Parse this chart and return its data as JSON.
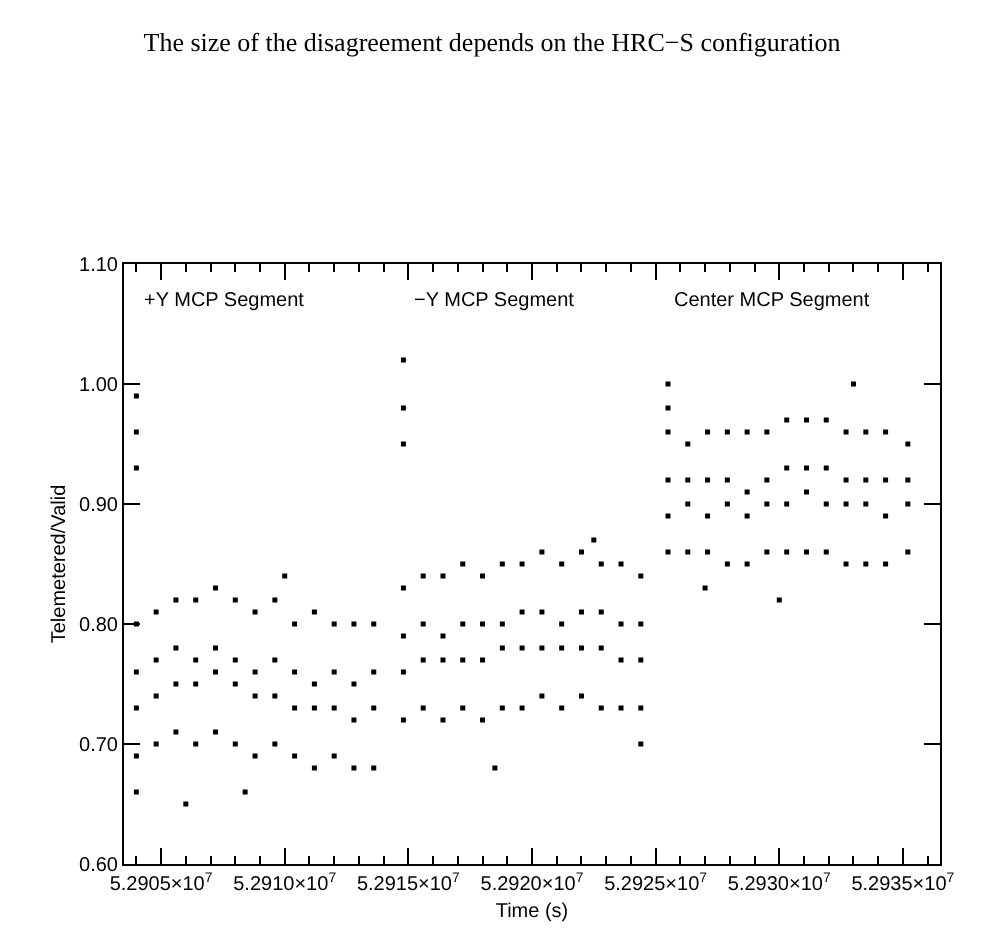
{
  "chart_data": {
    "type": "scatter",
    "title": "The size of the disagreement depends on the HRC−S configuration",
    "xlabel": "Time (s)",
    "ylabel": "Telemetered/Valid",
    "xlim": [
      52903500,
      52936500
    ],
    "ylim": [
      0.6,
      1.1
    ],
    "xticks": [
      {
        "value": 52904000,
        "label": null
      },
      {
        "value": 52905000,
        "label": "5.2905×10$^{7}$"
      },
      {
        "value": 52906000,
        "label": null
      },
      {
        "value": 52907000,
        "label": null
      },
      {
        "value": 52908000,
        "label": null
      },
      {
        "value": 52909000,
        "label": null
      },
      {
        "value": 52910000,
        "label": "5.2910×10$^{7}$"
      },
      {
        "value": 52911000,
        "label": null
      },
      {
        "value": 52912000,
        "label": null
      },
      {
        "value": 52913000,
        "label": null
      },
      {
        "value": 52914000,
        "label": null
      },
      {
        "value": 52915000,
        "label": "5.2915×10$^{7}$"
      },
      {
        "value": 52916000,
        "label": null
      },
      {
        "value": 52917000,
        "label": null
      },
      {
        "value": 52918000,
        "label": null
      },
      {
        "value": 52919000,
        "label": null
      },
      {
        "value": 52920000,
        "label": "5.2920×10$^{7}$"
      },
      {
        "value": 52921000,
        "label": null
      },
      {
        "value": 52922000,
        "label": null
      },
      {
        "value": 52923000,
        "label": null
      },
      {
        "value": 52924000,
        "label": null
      },
      {
        "value": 52925000,
        "label": "5.2925×10$^{7}$"
      },
      {
        "value": 52926000,
        "label": null
      },
      {
        "value": 52927000,
        "label": null
      },
      {
        "value": 52928000,
        "label": null
      },
      {
        "value": 52929000,
        "label": null
      },
      {
        "value": 52930000,
        "label": "5.2930×10$^{7}$"
      },
      {
        "value": 52931000,
        "label": null
      },
      {
        "value": 52932000,
        "label": null
      },
      {
        "value": 52933000,
        "label": null
      },
      {
        "value": 52934000,
        "label": null
      },
      {
        "value": 52935000,
        "label": "5.2935×10$^{7}$"
      },
      {
        "value": 52936000,
        "label": null
      }
    ],
    "yticks": [
      {
        "value": 0.6,
        "label": "0.60"
      },
      {
        "value": 0.7,
        "label": "0.70"
      },
      {
        "value": 0.8,
        "label": "0.80"
      },
      {
        "value": 0.9,
        "label": "0.90"
      },
      {
        "value": 1.0,
        "label": "1.00"
      },
      {
        "value": 1.1,
        "label": "1.10"
      }
    ],
    "marker": "square",
    "annotations": [
      "+Y MCP Segment",
      "−Y MCP Segment",
      "Center MCP Segment"
    ],
    "series": [
      {
        "color": "#000000",
        "x": [
          52904000,
          52904000,
          52904000,
          52904000,
          52904000,
          52904000,
          52904000,
          52904000,
          52904800,
          52904800,
          52904800,
          52904800,
          52905600,
          52905600,
          52905600,
          52905600,
          52906400,
          52906400,
          52906400,
          52906400,
          52907200,
          52907200,
          52907200,
          52907200,
          52908000,
          52908000,
          52908000,
          52908000,
          52908800,
          52908800,
          52908800,
          52908800,
          52909600,
          52909600,
          52909600,
          52909600,
          52910400,
          52910400,
          52910400,
          52910400,
          52911200,
          52911200,
          52911200,
          52911200,
          52912000,
          52912000,
          52912000,
          52912000,
          52912800,
          52912800,
          52912800,
          52912800,
          52913600,
          52913600,
          52913600,
          52913600,
          52906000,
          52908400,
          52910000,
          52914800,
          52914800,
          52914800,
          52914800,
          52914800,
          52914800,
          52914800,
          52915600,
          52915600,
          52915600,
          52915600,
          52916400,
          52916400,
          52916400,
          52916400,
          52917200,
          52917200,
          52917200,
          52917200,
          52918000,
          52918000,
          52918000,
          52918000,
          52918800,
          52918800,
          52918800,
          52918800,
          52919600,
          52919600,
          52919600,
          52919600,
          52920400,
          52920400,
          52920400,
          52920400,
          52921200,
          52921200,
          52921200,
          52921200,
          52922000,
          52922000,
          52922000,
          52922000,
          52922800,
          52922800,
          52922800,
          52922800,
          52923600,
          52923600,
          52923600,
          52923600,
          52924400,
          52924400,
          52924400,
          52924400,
          52918500,
          52922500,
          52924400,
          52925500,
          52925500,
          52925500,
          52925500,
          52925500,
          52925500,
          52926300,
          52926300,
          52926300,
          52926300,
          52927100,
          52927100,
          52927100,
          52927100,
          52927900,
          52927900,
          52927900,
          52927900,
          52928700,
          52928700,
          52928700,
          52928700,
          52929500,
          52929500,
          52929500,
          52929500,
          52930300,
          52930300,
          52930300,
          52930300,
          52931100,
          52931100,
          52931100,
          52931100,
          52931900,
          52931900,
          52931900,
          52931900,
          52932700,
          52932700,
          52932700,
          52932700,
          52933500,
          52933500,
          52933500,
          52933500,
          52934300,
          52934300,
          52934300,
          52934300,
          52935200,
          52935200,
          52935200,
          52935200,
          52927000,
          52930000,
          52933000
        ],
        "values": [
          0.99,
          0.96,
          0.93,
          0.8,
          0.76,
          0.73,
          0.69,
          0.66,
          0.81,
          0.77,
          0.74,
          0.7,
          0.82,
          0.78,
          0.75,
          0.71,
          0.82,
          0.77,
          0.75,
          0.7,
          0.83,
          0.78,
          0.76,
          0.71,
          0.82,
          0.77,
          0.75,
          0.7,
          0.81,
          0.76,
          0.74,
          0.69,
          0.82,
          0.77,
          0.74,
          0.7,
          0.8,
          0.76,
          0.73,
          0.69,
          0.81,
          0.75,
          0.73,
          0.68,
          0.8,
          0.76,
          0.73,
          0.69,
          0.8,
          0.75,
          0.72,
          0.68,
          0.8,
          0.76,
          0.73,
          0.68,
          0.65,
          0.66,
          0.84,
          1.02,
          0.98,
          0.95,
          0.83,
          0.79,
          0.76,
          0.72,
          0.84,
          0.8,
          0.77,
          0.73,
          0.84,
          0.79,
          0.77,
          0.72,
          0.85,
          0.8,
          0.77,
          0.73,
          0.84,
          0.8,
          0.77,
          0.72,
          0.85,
          0.8,
          0.78,
          0.73,
          0.85,
          0.81,
          0.78,
          0.73,
          0.86,
          0.81,
          0.78,
          0.74,
          0.85,
          0.8,
          0.78,
          0.73,
          0.86,
          0.81,
          0.78,
          0.74,
          0.85,
          0.81,
          0.78,
          0.73,
          0.85,
          0.8,
          0.77,
          0.73,
          0.84,
          0.8,
          0.77,
          0.73,
          0.68,
          0.87,
          0.7,
          1.0,
          0.98,
          0.96,
          0.92,
          0.89,
          0.86,
          0.95,
          0.92,
          0.9,
          0.86,
          0.96,
          0.92,
          0.89,
          0.86,
          0.96,
          0.92,
          0.9,
          0.85,
          0.96,
          0.91,
          0.89,
          0.85,
          0.96,
          0.92,
          0.9,
          0.86,
          0.97,
          0.93,
          0.9,
          0.86,
          0.97,
          0.93,
          0.91,
          0.86,
          0.97,
          0.93,
          0.9,
          0.86,
          0.96,
          0.92,
          0.9,
          0.85,
          0.96,
          0.92,
          0.9,
          0.85,
          0.96,
          0.92,
          0.89,
          0.85,
          0.95,
          0.92,
          0.9,
          0.86,
          0.83,
          0.82,
          1.0
        ]
      }
    ]
  }
}
